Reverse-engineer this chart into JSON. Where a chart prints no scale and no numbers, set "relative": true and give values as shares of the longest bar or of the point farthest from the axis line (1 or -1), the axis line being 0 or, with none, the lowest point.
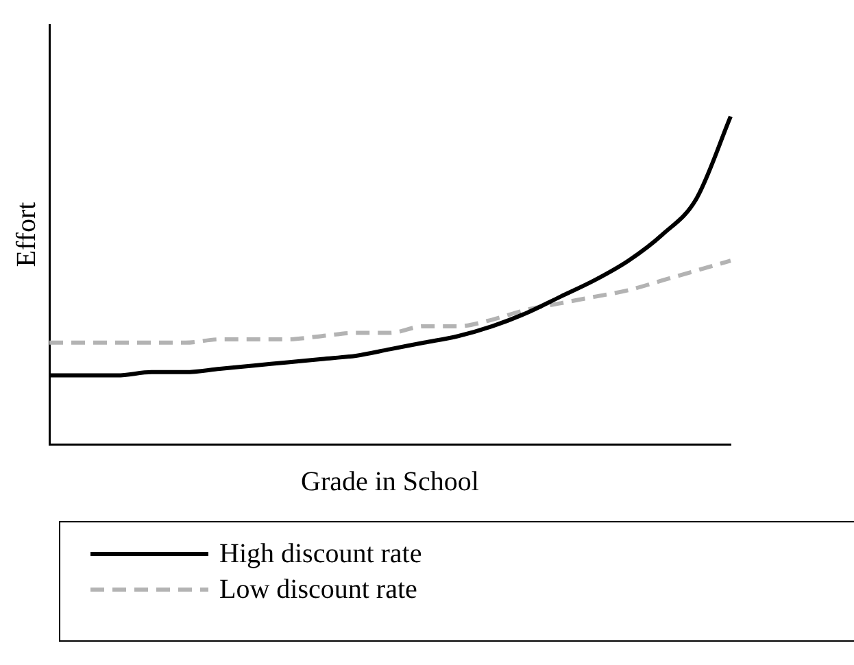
{
  "chart_data": {
    "type": "line",
    "relative": true,
    "xlabel": "Grade in School",
    "ylabel": "Effort",
    "legend": "bottom",
    "marker": "none",
    "grid": false,
    "tick_labels": false,
    "categories": [
      null,
      null,
      null,
      null,
      null,
      null,
      null,
      null,
      null,
      null,
      null,
      null,
      null,
      null,
      null,
      null,
      null,
      null,
      null,
      null,
      null
    ],
    "series": [
      {
        "name": "High discount rate",
        "color": "#000000",
        "line_style": "solid",
        "values": [
          0.21,
          0.21,
          0.21,
          0.22,
          0.22,
          0.23,
          0.24,
          0.25,
          0.26,
          0.27,
          0.29,
          0.31,
          0.33,
          0.36,
          0.4,
          0.45,
          0.5,
          0.56,
          0.64,
          0.75,
          1
        ]
      },
      {
        "name": "Low discount rate",
        "color": "#b3b3b3",
        "line_style": "dashed",
        "values": [
          0.31,
          0.31,
          0.31,
          0.31,
          0.31,
          0.32,
          0.32,
          0.32,
          0.33,
          0.34,
          0.34,
          0.36,
          0.36,
          0.38,
          0.41,
          0.43,
          0.45,
          0.47,
          0.5,
          0.53,
          0.56
        ]
      }
    ]
  }
}
